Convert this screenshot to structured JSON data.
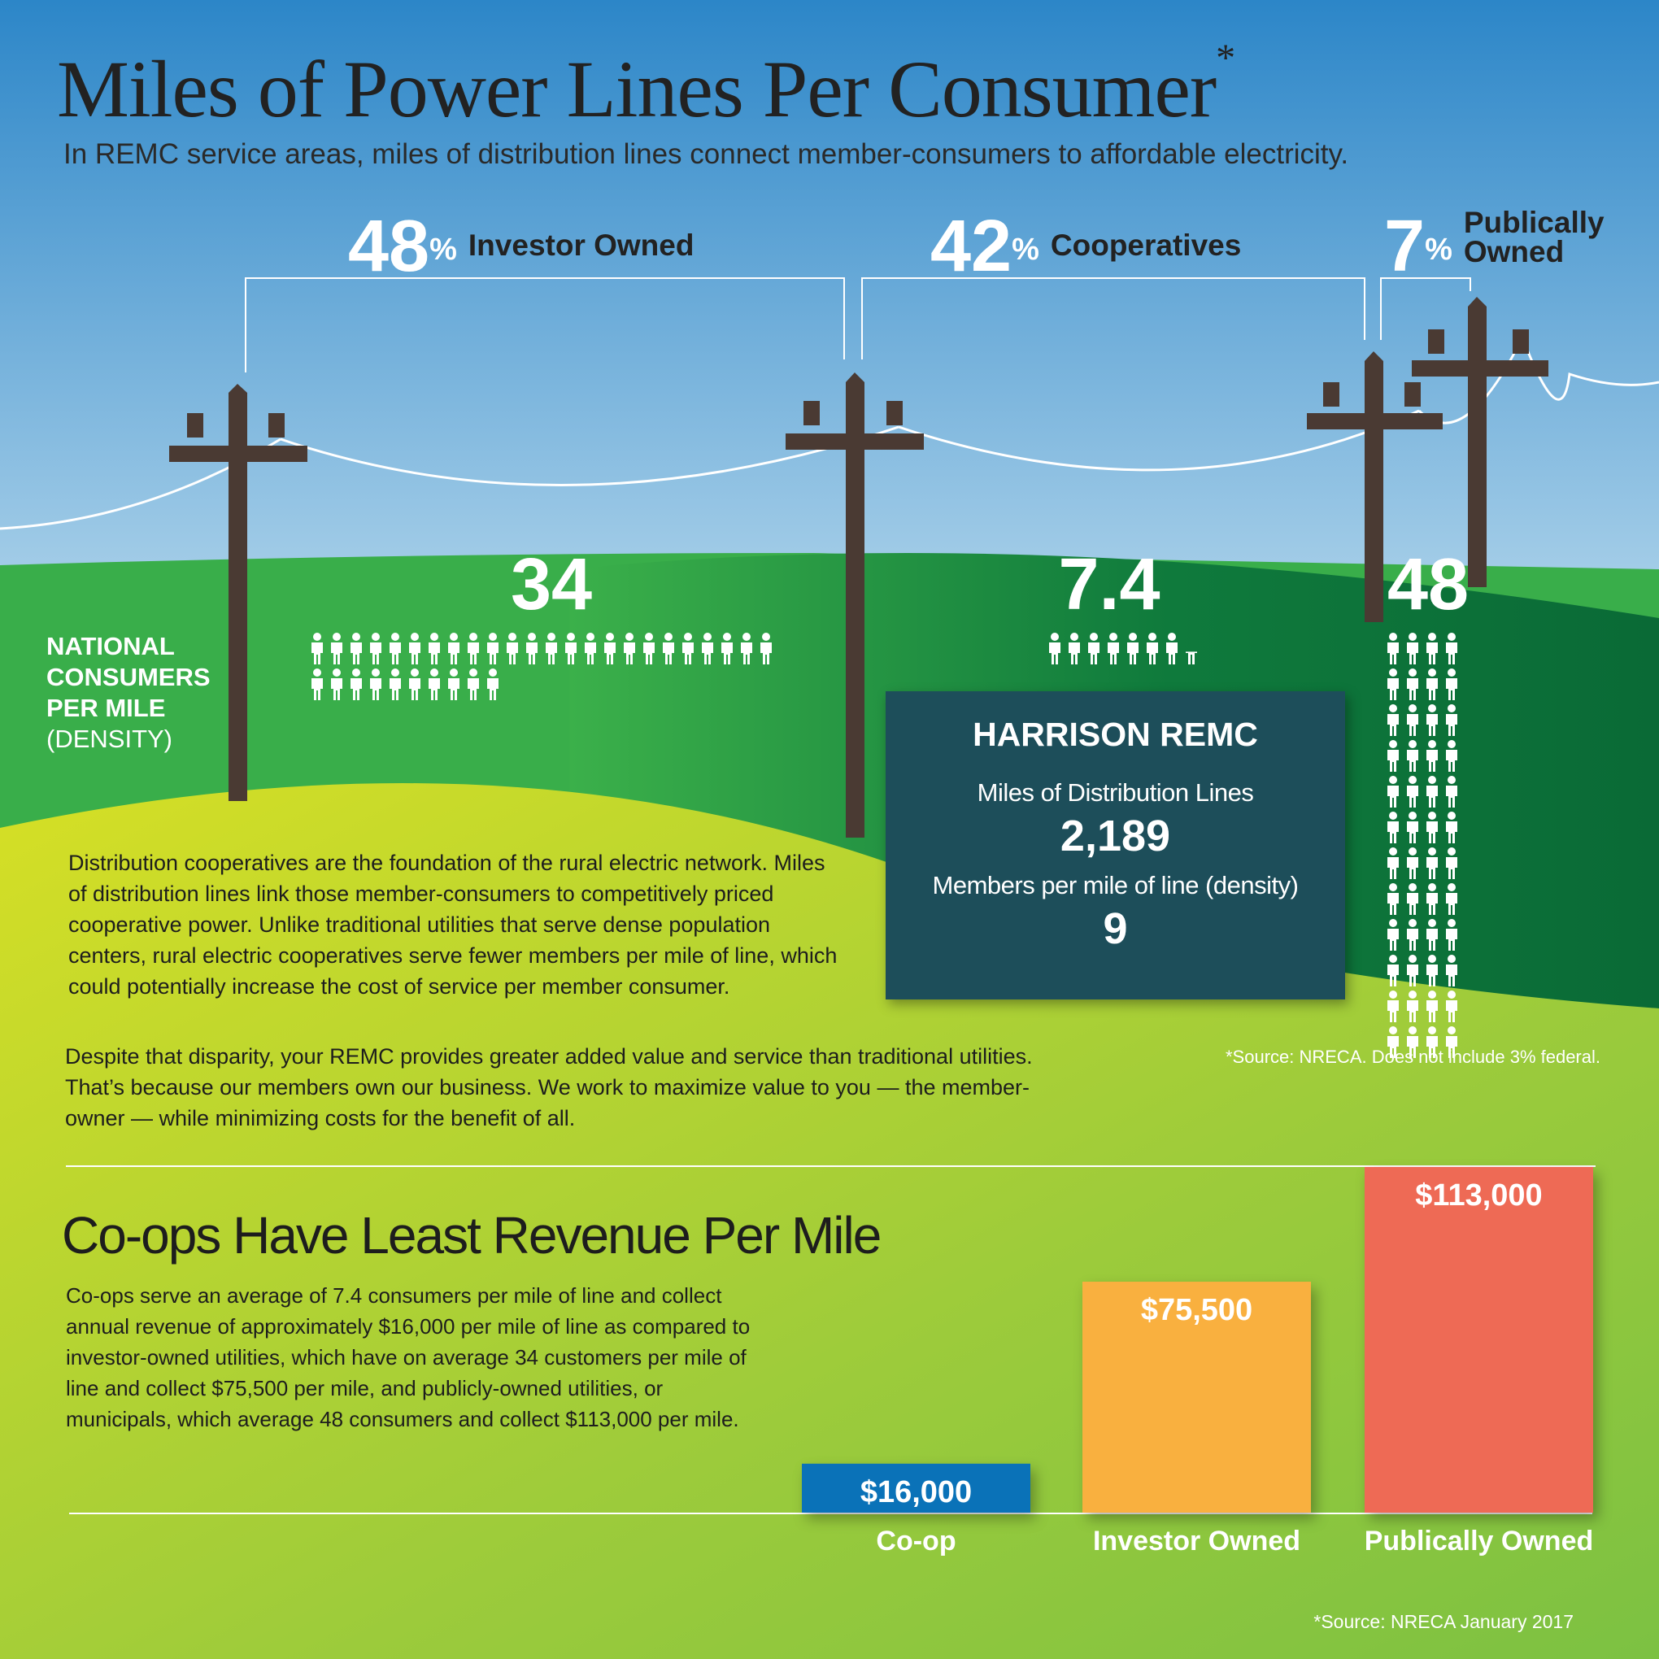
{
  "header": {
    "title": "Miles of Power Lines Per Consumer",
    "title_mark": "*",
    "subtitle": "In REMC service areas, miles of distribution lines connect member-consumers to affordable electricity."
  },
  "shares": [
    {
      "value": 48,
      "unit": "%",
      "label": "Investor Owned"
    },
    {
      "value": 42,
      "unit": "%",
      "label": "Cooperatives"
    },
    {
      "value": 7,
      "unit": "%",
      "label": "Publically Owned"
    }
  ],
  "density": {
    "label": "NATIONAL CONSUMERS PER MILE",
    "label_note": "(DENSITY)",
    "values": [
      34,
      7.4,
      48
    ]
  },
  "remc": {
    "title": "HARRISON REMC",
    "miles_label": "Miles of Distribution Lines",
    "miles_value": "2,189",
    "density_label": "Members per mile of line (density)",
    "density_value": "9"
  },
  "body": [
    "Distribution cooperatives are the foundation of the rural electric network. Miles of distribution lines link those member-consumers to competitively priced cooperative power. Unlike traditional utilities that serve dense population centers, rural electric cooperatives serve fewer members per mile of line, which could potentially increase the cost of service per member consumer.",
    "Despite that disparity, your REMC provides greater added value and service than traditional utilities. That’s because our members own our business. We work to maximize value to you — the member-owner — while minimizing costs for the benefit of all."
  ],
  "source_note": "*Source: NRECA.  Does not include 3% federal.",
  "revenue": {
    "title": "Co-ops Have Least Revenue Per Mile",
    "text": "Co-ops serve an average of 7.4 consumers per mile of line and collect annual revenue of approximately $16,000 per mile of line as compared to investor-owned utilities, which have on average 34 customers per mile of line and collect $75,500 per mile, and publicly-owned utilities, or municipals, which average 48 consumers and collect $113,000 per mile.",
    "source": "*Source: NRECA January 2017"
  },
  "chart_data": {
    "type": "bar",
    "categories": [
      "Co-op",
      "Investor Owned",
      "Publically Owned"
    ],
    "values": [
      16000,
      75500,
      113000
    ],
    "value_labels": [
      "$16,000",
      "$75,500",
      "$113,000"
    ],
    "colors": [
      "#0a72b8",
      "#f9b03f",
      "#ee6a55"
    ],
    "ylim": [
      0,
      113000
    ]
  }
}
